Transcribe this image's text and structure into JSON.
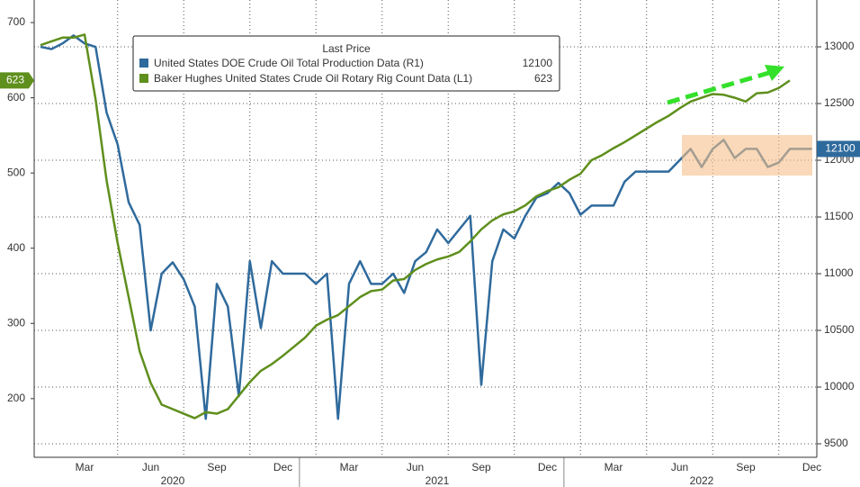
{
  "chart_data": {
    "type": "line",
    "legend_title": "Last Price",
    "categories": [
      null,
      null,
      null,
      null,
      "Mar",
      null,
      null,
      null,
      null,
      null,
      "Jun",
      null,
      null,
      null,
      null,
      null,
      "Sep",
      null,
      null,
      null,
      null,
      null,
      "Dec",
      null,
      null,
      null,
      null,
      null,
      "Mar",
      null,
      null,
      null,
      null,
      null,
      "Jun",
      null,
      null,
      null,
      null,
      null,
      "Sep",
      null,
      null,
      null,
      null,
      null,
      "Dec",
      null,
      null,
      null,
      null,
      null,
      "Mar",
      null,
      null,
      null,
      null,
      null,
      "Jun",
      null,
      null,
      null,
      null,
      null,
      "Sep",
      null,
      null,
      null,
      null,
      null,
      "Dec",
      null
    ],
    "years": [
      "2020",
      "2021",
      "2022"
    ],
    "series": [
      {
        "name": "United States DOE Crude Oil Total Production Data  (R1)",
        "color": "#2f6a9c",
        "axis": "y2",
        "last_label": "12100",
        "values": [
          13000,
          12980,
          13030,
          13100,
          13030,
          13000,
          12420,
          12140,
          11630,
          11430,
          10500,
          11000,
          11100,
          10950,
          10710,
          9720,
          10910,
          10710,
          9920,
          11110,
          10520,
          11110,
          11000,
          11000,
          11000,
          10910,
          11000,
          9720,
          10910,
          11110,
          10910,
          10910,
          11000,
          10830,
          11110,
          11190,
          11390,
          11270,
          11390,
          11510,
          10020,
          11110,
          11390,
          11310,
          11510,
          11670,
          11710,
          11800,
          11710,
          11520,
          11600,
          11600,
          11600,
          11810,
          11900,
          11900,
          11900,
          11900,
          12000,
          12100,
          11940,
          12100,
          12180,
          12020,
          12100,
          12100,
          11940,
          11980,
          12100,
          12100,
          12100,
          null
        ]
      },
      {
        "name": "Baker Hughes United States Crude Oil Rotary Rig Count Data  (L1)",
        "color": "#5f8f1c",
        "axis": "y",
        "last_label": "623",
        "values": [
          670,
          675,
          680,
          680,
          684,
          598,
          490,
          407,
          335,
          263,
          221,
          192,
          186,
          180,
          174,
          182,
          180,
          186,
          204,
          222,
          237,
          246,
          257,
          269,
          281,
          297,
          305,
          311,
          323,
          335,
          343,
          345,
          357,
          359,
          371,
          379,
          385,
          389,
          395,
          409,
          425,
          437,
          445,
          449,
          457,
          469,
          476,
          481,
          491,
          499,
          517,
          524,
          533,
          541,
          550,
          559,
          568,
          576,
          586,
          595,
          600,
          605,
          604,
          600,
          595,
          606,
          607,
          613,
          623,
          null,
          null,
          null
        ]
      }
    ],
    "ylim": [
      122,
      730
    ],
    "yticks": [
      200,
      300,
      400,
      500,
      600,
      700
    ],
    "y2lim": [
      9381,
      13413
    ],
    "y2ticks": [
      9500,
      10000,
      10500,
      11000,
      11500,
      12000,
      12500,
      13000
    ],
    "grid": true
  }
}
